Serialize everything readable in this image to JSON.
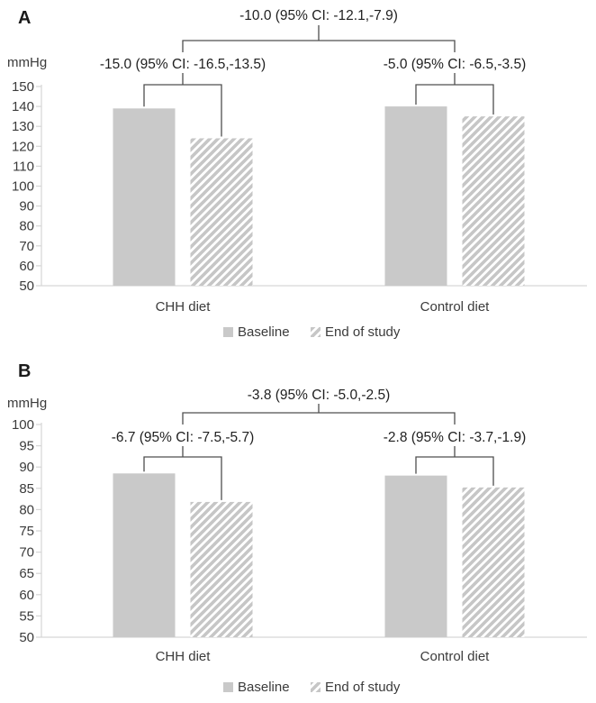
{
  "colors": {
    "bar_fill": "#c9c9c9",
    "hatch_stroke": "#c6c6c6",
    "axis_line": "#d6d6d6",
    "tick_text": "#3b3b3b",
    "annotation_text": "#1f1f1f",
    "bracket_line": "#4f4f4f",
    "panel_label": "#1a1a1a"
  },
  "chart_data": [
    {
      "type": "bar",
      "panel_label": "A",
      "ylabel": "mmHg",
      "ylim": [
        50,
        150
      ],
      "ytick_step": 10,
      "categories": [
        "CHH diet",
        "Control diet"
      ],
      "series": [
        {
          "name": "Baseline",
          "style": "solid",
          "values": [
            139,
            140
          ]
        },
        {
          "name": "End of study",
          "style": "hatched",
          "values": [
            124,
            135
          ]
        }
      ],
      "overall_annotation": "-10.0 (95% CI: -12.1,-7.9)",
      "group_annotations": [
        "-15.0 (95% CI: -16.5,-13.5)",
        "-5.0 (95% CI: -6.5,-3.5)"
      ],
      "legend": [
        "Baseline",
        "End of study"
      ],
      "legend_position": "bottom",
      "grid": false
    },
    {
      "type": "bar",
      "panel_label": "B",
      "ylabel": "mmHg",
      "ylim": [
        50,
        100
      ],
      "ytick_step": 5,
      "categories": [
        "CHH diet",
        "Control diet"
      ],
      "series": [
        {
          "name": "Baseline",
          "style": "solid",
          "values": [
            88.5,
            88
          ]
        },
        {
          "name": "End of study",
          "style": "hatched",
          "values": [
            81.8,
            85.2
          ]
        }
      ],
      "overall_annotation": "-3.8 (95% CI: -5.0,-2.5)",
      "group_annotations": [
        "-6.7 (95% CI: -7.5,-5.7)",
        "-2.8 (95% CI: -3.7,-1.9)"
      ],
      "legend": [
        "Baseline",
        "End of study"
      ],
      "legend_position": "bottom",
      "grid": false
    }
  ]
}
